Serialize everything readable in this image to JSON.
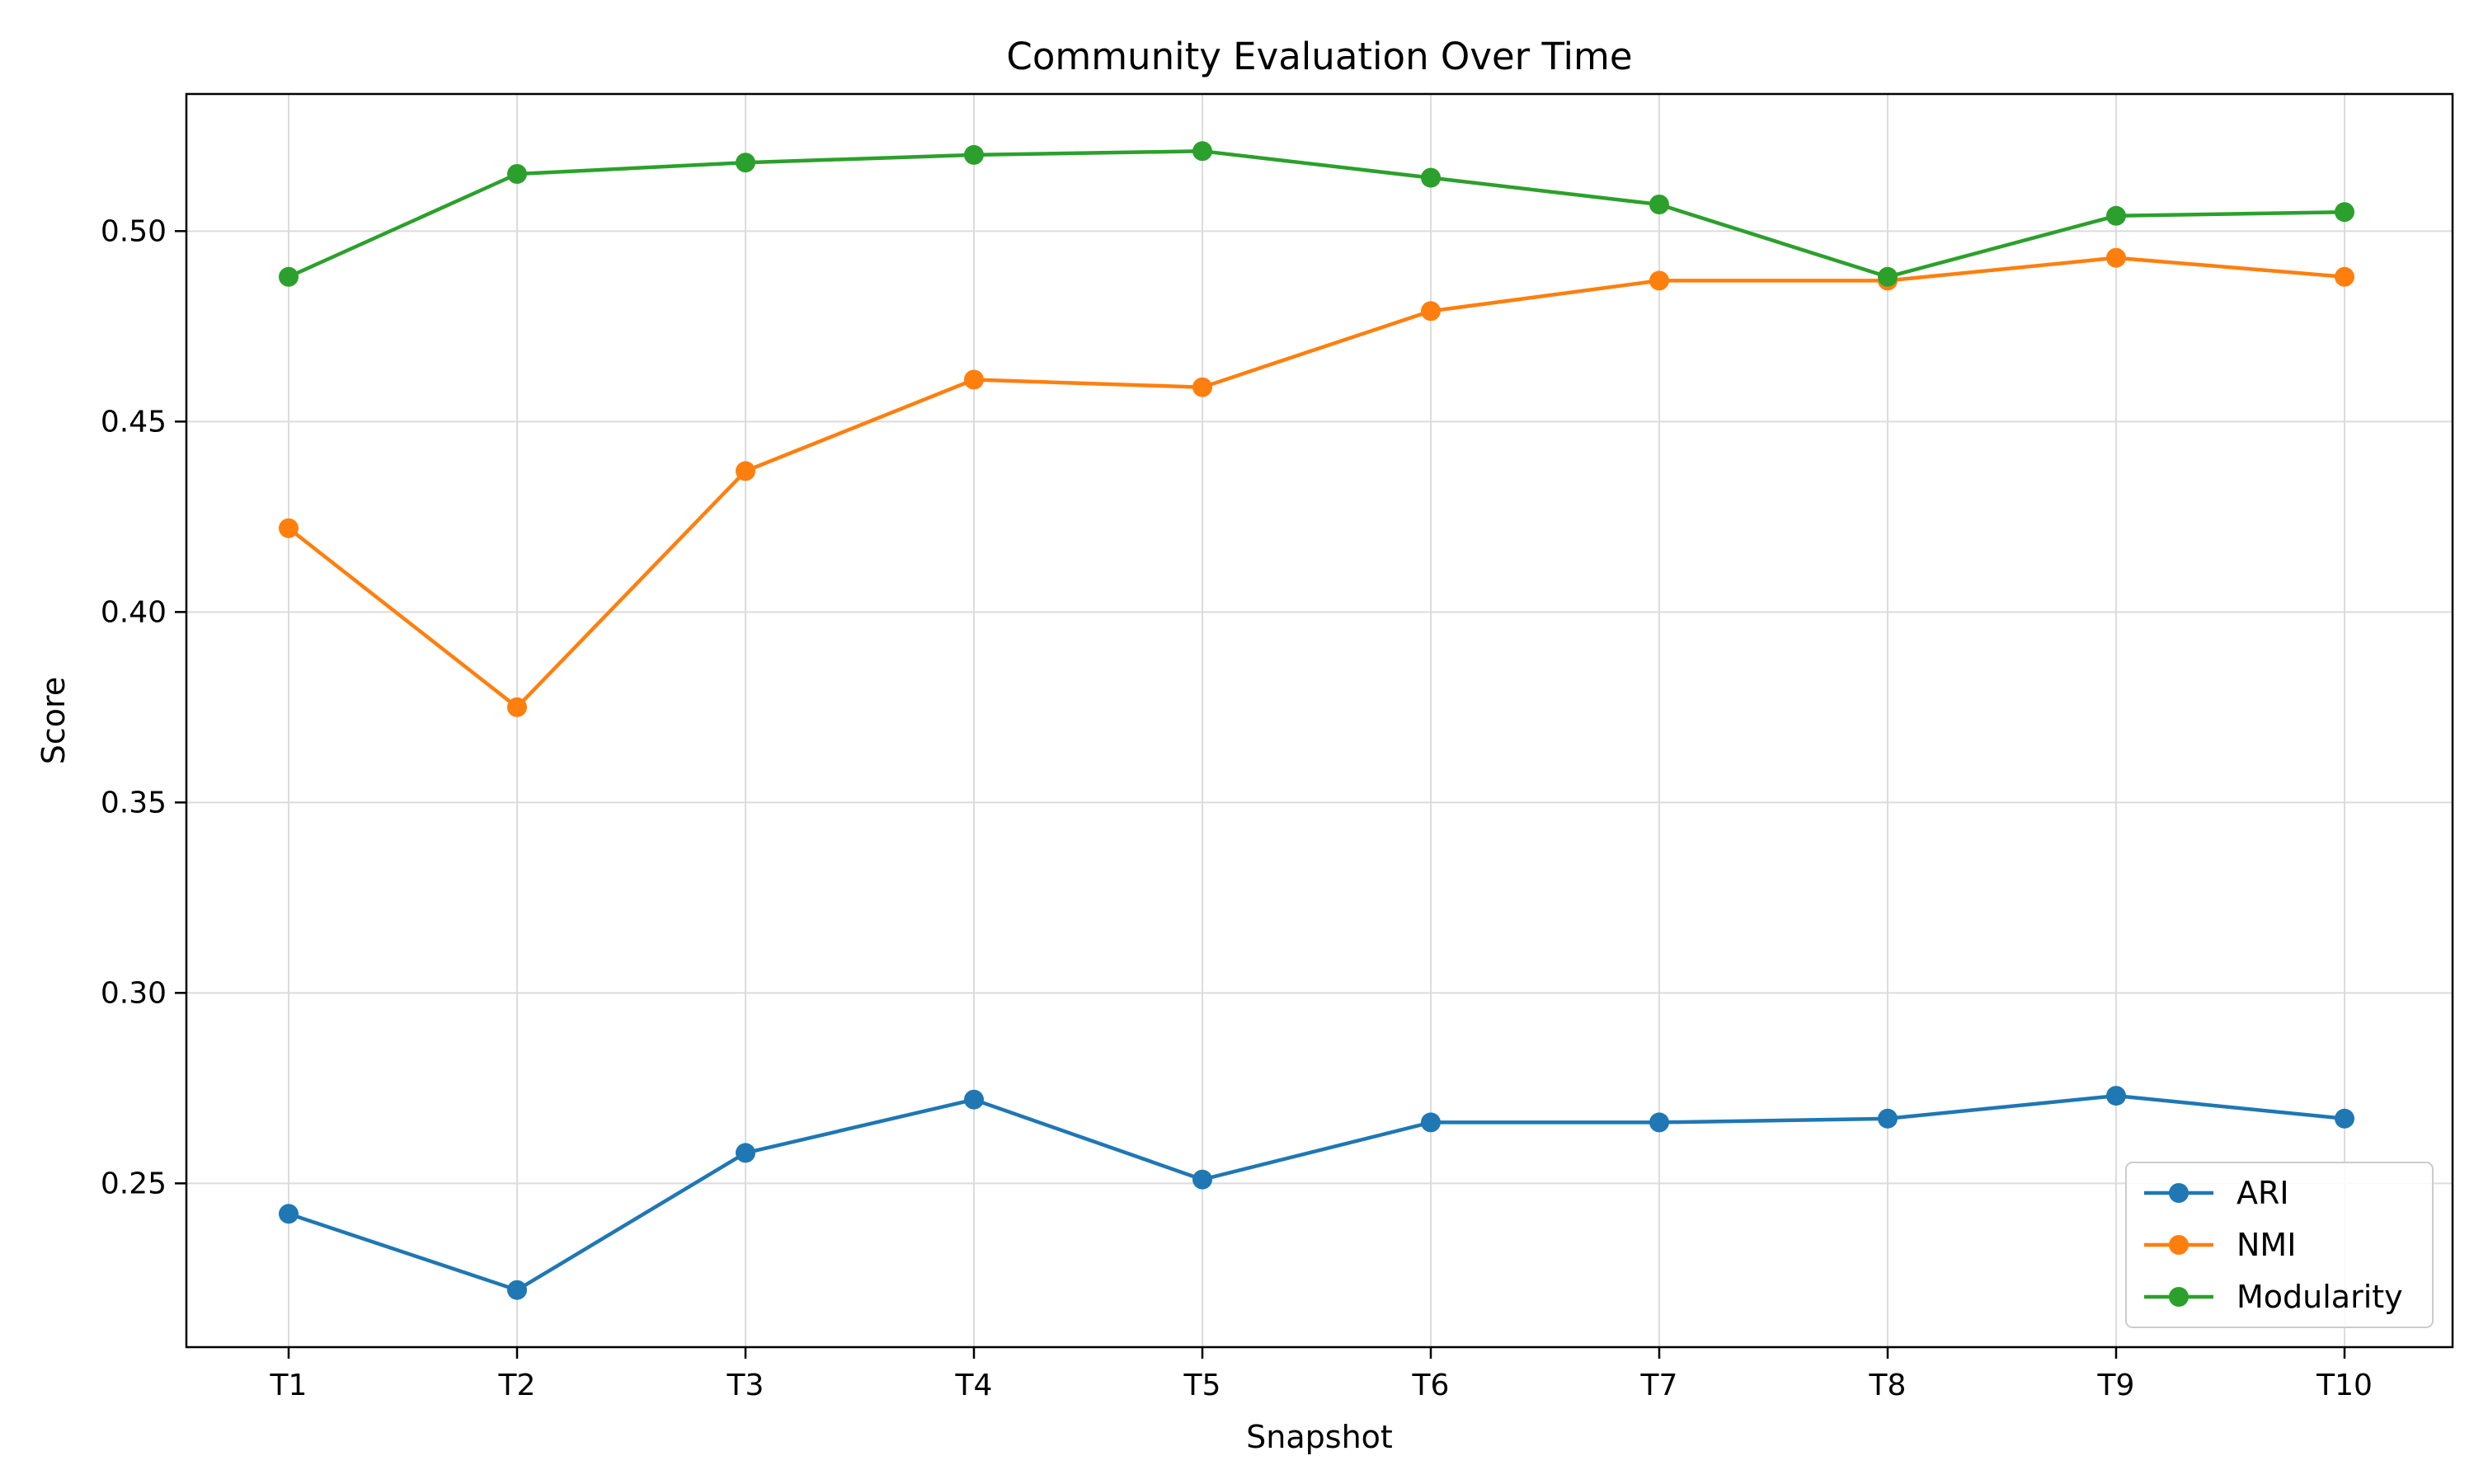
{
  "chart_data": {
    "type": "line",
    "title": "Community Evaluation Over Time",
    "xlabel": "Snapshot",
    "ylabel": "Score",
    "categories": [
      "T1",
      "T2",
      "T3",
      "T4",
      "T5",
      "T6",
      "T7",
      "T8",
      "T9",
      "T10"
    ],
    "ylim": [
      0.207,
      0.536
    ],
    "yticks": [
      0.25,
      0.3,
      0.35,
      0.4,
      0.45,
      0.5
    ],
    "ytick_labels": [
      "0.25",
      "0.30",
      "0.35",
      "0.40",
      "0.45",
      "0.50"
    ],
    "grid": true,
    "legend_position": "bottom-right",
    "series": [
      {
        "name": "ARI",
        "color": "#1f77b4",
        "values": [
          0.242,
          0.222,
          0.258,
          0.272,
          0.251,
          0.266,
          0.266,
          0.267,
          0.273,
          0.267
        ]
      },
      {
        "name": "NMI",
        "color": "#ff7f0e",
        "values": [
          0.422,
          0.375,
          0.437,
          0.461,
          0.459,
          0.479,
          0.487,
          0.487,
          0.493,
          0.488
        ]
      },
      {
        "name": "Modularity",
        "color": "#2ca02c",
        "values": [
          0.488,
          0.515,
          0.518,
          0.52,
          0.521,
          0.514,
          0.507,
          0.488,
          0.504,
          0.505
        ]
      }
    ]
  }
}
